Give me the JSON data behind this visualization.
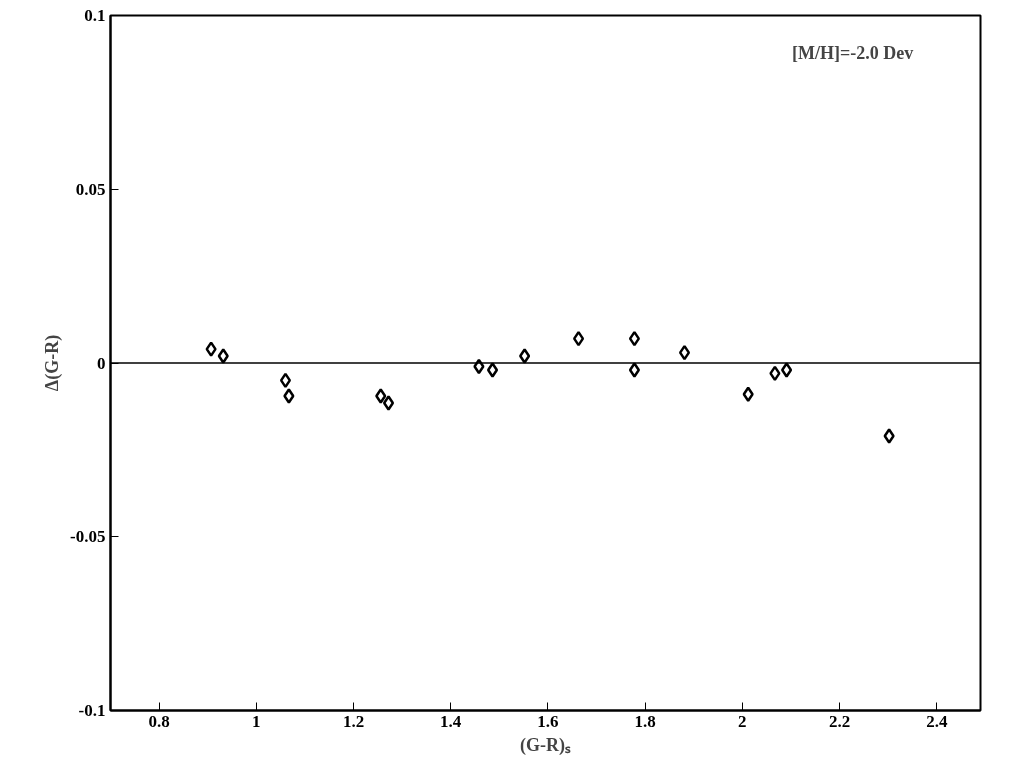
{
  "chart_data": {
    "type": "scatter",
    "xlabel": "(G-R)ₛ",
    "ylabel": "Δ(G-R)",
    "annotations": [
      "[M/H]=-2.0   Dev"
    ],
    "x": [
      0.907,
      0.932,
      1.06,
      1.067,
      1.256,
      1.272,
      1.458,
      1.486,
      1.552,
      1.663,
      1.778,
      1.778,
      1.881,
      2.012,
      2.067,
      2.091,
      2.302
    ],
    "series": [
      {
        "color": "#000000",
        "values": [
          0.004,
          0.002,
          -0.005,
          -0.0095,
          -0.0095,
          -0.0115,
          -0.001,
          -0.002,
          0.002,
          0.007,
          0.007,
          -0.002,
          0.003,
          -0.009,
          -0.003,
          -0.002,
          -0.021
        ]
      }
    ],
    "marker": "diamond",
    "xlim": [
      0.7,
      2.49
    ],
    "ylim": [
      -0.1,
      0.1
    ],
    "xticks": [
      0.8,
      1,
      1.2,
      1.4,
      1.6,
      1.8,
      2,
      2.2,
      2.4
    ],
    "yticks": [
      -0.1,
      -0.05,
      0,
      0.05,
      0.1
    ],
    "ref_lines": [
      {
        "axis": "y",
        "value": 0,
        "color": "#000000"
      }
    ],
    "grid": false
  }
}
